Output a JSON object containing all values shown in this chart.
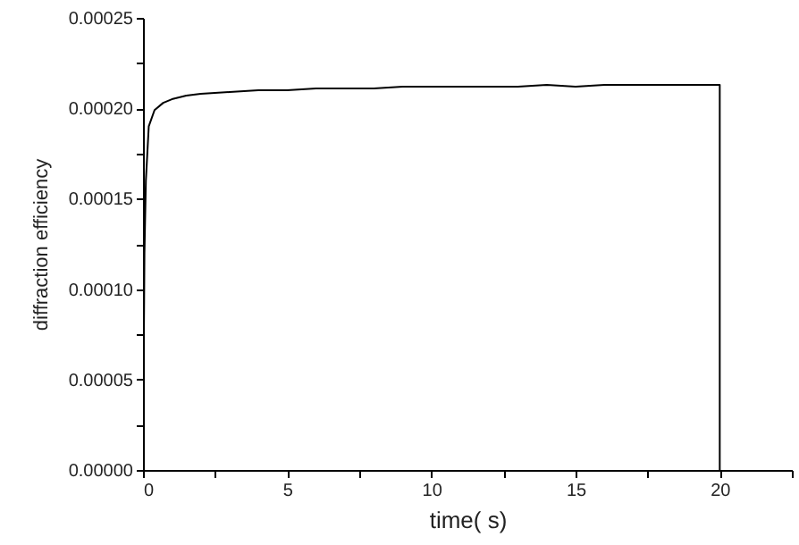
{
  "chart_data": {
    "type": "line",
    "xlabel": "time( s)",
    "ylabel": "diffraction efficiency",
    "x": [
      0,
      0.05,
      0.1,
      0.2,
      0.4,
      0.7,
      1,
      1.5,
      2,
      3,
      4,
      5,
      6,
      7,
      8,
      9,
      10,
      11,
      12,
      13,
      14,
      15,
      16,
      17,
      18,
      19,
      20,
      20
    ],
    "series": [
      {
        "color": "#000000",
        "values": [
          0,
          0.00012,
          0.00016,
          0.00019,
          0.000199,
          0.000203,
          0.000205,
          0.000207,
          0.000208,
          0.000209,
          0.00021,
          0.00021,
          0.000211,
          0.000211,
          0.000211,
          0.000212,
          0.000212,
          0.000212,
          0.000212,
          0.000212,
          0.000213,
          0.000212,
          0.000213,
          0.000213,
          0.000213,
          0.000213,
          0.000213,
          0
        ]
      }
    ],
    "xlim": [
      0,
      22.5
    ],
    "xticks": [
      0,
      {
        "value": 2.5,
        "label": null
      },
      5,
      {
        "value": 7.5,
        "label": null
      },
      10,
      {
        "value": 12.5,
        "label": null
      },
      15,
      {
        "value": 17.5,
        "label": null
      },
      20,
      {
        "value": 22.5,
        "label": null
      }
    ],
    "ylim": [
      0,
      0.00025
    ],
    "yticks": [
      {
        "value": 0,
        "label": "0.00000"
      },
      {
        "value": 2.5e-05,
        "label": null
      },
      {
        "value": 5e-05,
        "label": "0.00005"
      },
      {
        "value": 7.5e-05,
        "label": null
      },
      {
        "value": 0.0001,
        "label": "0.00010"
      },
      {
        "value": 0.000125,
        "label": null
      },
      {
        "value": 0.00015,
        "label": "0.00015"
      },
      {
        "value": 0.000175,
        "label": null
      },
      {
        "value": 0.0002,
        "label": "0.00020"
      },
      {
        "value": 0.000225,
        "label": null
      },
      {
        "value": 0.00025,
        "label": "0.00025"
      }
    ],
    "grid": false,
    "marker": "none",
    "line_style": "solid"
  }
}
